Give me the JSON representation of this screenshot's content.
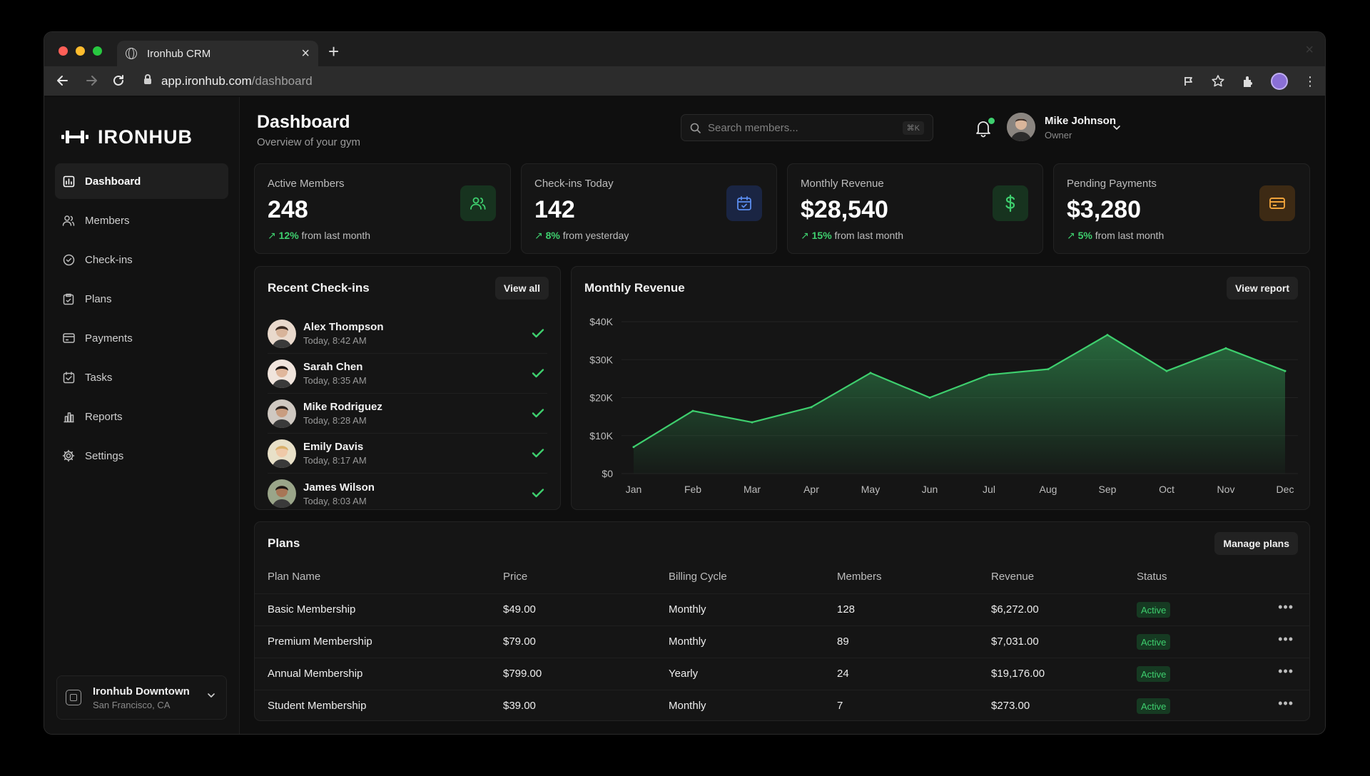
{
  "browser": {
    "tab_title": "Ironhub CRM",
    "url_host": "app.ironhub.com",
    "url_path": "/dashboard"
  },
  "sidebar": {
    "brand": "IRONHUB",
    "items": [
      {
        "label": "Dashboard",
        "icon": "dashboard-icon",
        "active": true
      },
      {
        "label": "Members",
        "icon": "users-icon"
      },
      {
        "label": "Check-ins",
        "icon": "check-badge-icon"
      },
      {
        "label": "Plans",
        "icon": "clipboard-icon"
      },
      {
        "label": "Payments",
        "icon": "credit-card-icon"
      },
      {
        "label": "Tasks",
        "icon": "task-icon"
      },
      {
        "label": "Reports",
        "icon": "bar-chart-icon"
      },
      {
        "label": "Settings",
        "icon": "gear-icon"
      }
    ],
    "workspace": {
      "name": "Ironhub Downtown",
      "location": "San Francisco, CA"
    }
  },
  "header": {
    "title": "Dashboard",
    "subtitle": "Overview of your gym",
    "search_placeholder": "Search members...",
    "search_shortcut": "⌘K",
    "user_name": "Mike Johnson",
    "user_role": "Owner"
  },
  "stats": [
    {
      "label": "Active Members",
      "value": "248",
      "change": "12%",
      "suffix": "from last month",
      "icon": "users-icon",
      "accent": "#3ecf6e"
    },
    {
      "label": "Check-ins Today",
      "value": "142",
      "change": "8%",
      "suffix": "from yesterday",
      "icon": "calendar-check-icon",
      "accent": "#5b8def"
    },
    {
      "label": "Monthly Revenue",
      "value": "$28,540",
      "change": "15%",
      "suffix": "from last month",
      "icon": "dollar-icon",
      "accent": "#3ecf6e"
    },
    {
      "label": "Pending Payments",
      "value": "$3,280",
      "change": "5%",
      "suffix": "from last month",
      "icon": "card-icon",
      "accent": "#f0a33a"
    }
  ],
  "checkins": {
    "title": "Recent Check-ins",
    "button": "View all",
    "items": [
      {
        "name": "Alex Thompson",
        "time": "Today, 8:42 AM"
      },
      {
        "name": "Sarah Chen",
        "time": "Today, 8:35 AM"
      },
      {
        "name": "Mike Rodriguez",
        "time": "Today, 8:28 AM"
      },
      {
        "name": "Emily Davis",
        "time": "Today, 8:17 AM"
      },
      {
        "name": "James Wilson",
        "time": "Today, 8:03 AM"
      }
    ]
  },
  "revenue": {
    "title": "Monthly Revenue",
    "button": "View report"
  },
  "chart_data": {
    "type": "area",
    "title": "Monthly Revenue",
    "categories": [
      "Jan",
      "Feb",
      "Mar",
      "Apr",
      "May",
      "Jun",
      "Jul",
      "Aug",
      "Sep",
      "Oct",
      "Nov",
      "Dec"
    ],
    "series": [
      {
        "values": [
          7000,
          16500,
          13500,
          17500,
          26500,
          20000,
          26000,
          27500,
          36500,
          27000,
          33000,
          27000
        ]
      }
    ],
    "yticks": [
      "$0",
      "$10K",
      "$20K",
      "$30K",
      "$40K"
    ],
    "ylim": [
      0,
      40000
    ],
    "grid": true,
    "color": "#3ecf6e"
  },
  "plans": {
    "title": "Plans",
    "button": "Manage plans",
    "columns": [
      "Plan Name",
      "Price",
      "Billing Cycle",
      "Members",
      "Revenue",
      "Status"
    ],
    "rows": [
      [
        "Basic Membership",
        "$49.00",
        "Monthly",
        "128",
        "$6,272.00",
        "Active"
      ],
      [
        "Premium Membership",
        "$79.00",
        "Monthly",
        "89",
        "$7,031.00",
        "Active"
      ],
      [
        "Annual Membership",
        "$799.00",
        "Yearly",
        "24",
        "$19,176.00",
        "Active"
      ],
      [
        "Student Membership",
        "$39.00",
        "Monthly",
        "7",
        "$273.00",
        "Active"
      ]
    ]
  }
}
